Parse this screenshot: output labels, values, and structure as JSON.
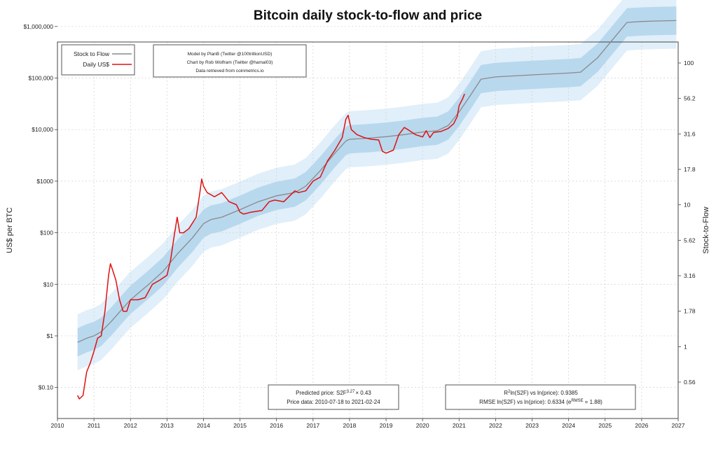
{
  "chart_data": {
    "type": "line",
    "title": "Bitcoin daily stock-to-flow and price",
    "ylabel_left": "US$ per BTC",
    "ylabel_right": "Stock-to-Flow",
    "y_scale": "log",
    "xlim": [
      2010,
      2027
    ],
    "ylim": [
      0.025,
      500000
    ],
    "x_ticks": [
      "2010",
      "2011",
      "2012",
      "2013",
      "2014",
      "2015",
      "2016",
      "2017",
      "2018",
      "2019",
      "2020",
      "2021",
      "2022",
      "2023",
      "2024",
      "2025",
      "2026",
      "2027"
    ],
    "y_ticks_left": [
      {
        "value": 0.1,
        "label": "$0.10"
      },
      {
        "value": 1,
        "label": "$1"
      },
      {
        "value": 10,
        "label": "$10"
      },
      {
        "value": 100,
        "label": "$100"
      },
      {
        "value": 1000,
        "label": "$1000"
      },
      {
        "value": 10000,
        "label": "$10,000"
      },
      {
        "value": 100000,
        "label": "$100,000"
      },
      {
        "value": 1000000,
        "label": "$1,000,000"
      }
    ],
    "y_ticks_right": [
      "0.56",
      "1",
      "1.78",
      "3.16",
      "5.62",
      "10",
      "17.8",
      "31.6",
      "56.2",
      "100"
    ],
    "legend": {
      "position": "top-left",
      "entries": [
        {
          "label": "Stock to Flow",
          "color": "#8a8a8a"
        },
        {
          "label": "Daily US$",
          "color": "#e01010"
        }
      ]
    },
    "credits": [
      "Model by PlanB (Twitter @100trillionUSD)",
      "Chart by Rob Wolfram (Twitter @hamal03)",
      "Data retrieved from coinmetrics.io"
    ],
    "info_left": {
      "line1_prefix": "Predicted price: S2F",
      "line1_exp": "3.27",
      "line1_suffix": "× 0.43",
      "line2": "Price data: 2010-07-18 to 2021-02-24"
    },
    "info_right": {
      "line1_prefix": "R",
      "line1_exp": "2",
      "line1_suffix": "ln(S2F) vs ln(price): 0.9385",
      "line2_prefix": "RMSE ln(S2F) vs ln(price): 0.6334 (e",
      "line2_exp": "RMSE",
      "line2_suffix": "= 1.88)"
    },
    "series": [
      {
        "name": "Stock to Flow",
        "color": "#8a8a8a",
        "x": [
          2010.55,
          2010.8,
          2011.0,
          2011.2,
          2011.5,
          2011.8,
          2012.0,
          2012.5,
          2012.9,
          2013.3,
          2013.7,
          2014.0,
          2014.2,
          2014.5,
          2015.0,
          2015.5,
          2016.0,
          2016.5,
          2016.8,
          2017.2,
          2017.6,
          2017.9,
          2018.0,
          2018.5,
          2019.0,
          2019.5,
          2020.0,
          2020.4,
          2020.7,
          2021.0,
          2021.3,
          2021.6,
          2022.0,
          2023.0,
          2024.0,
          2024.33,
          2024.8,
          2025.2,
          2025.6,
          2026.0,
          2026.5,
          2026.95
        ],
        "y": [
          0.75,
          0.9,
          1.0,
          1.2,
          2.0,
          3.5,
          5.0,
          10,
          18,
          40,
          80,
          150,
          180,
          200,
          280,
          400,
          520,
          600,
          800,
          1600,
          3500,
          6000,
          6500,
          6800,
          7300,
          8000,
          9000,
          9500,
          12000,
          22000,
          45000,
          95000,
          105000,
          115000,
          125000,
          130000,
          250000,
          550000,
          1200000,
          1250000,
          1280000,
          1300000
        ]
      },
      {
        "name": "Daily US$",
        "color": "#e01010",
        "x": [
          2010.55,
          2010.6,
          2010.7,
          2010.8,
          2010.9,
          2011.0,
          2011.1,
          2011.2,
          2011.3,
          2011.4,
          2011.45,
          2011.5,
          2011.6,
          2011.7,
          2011.8,
          2011.9,
          2012.0,
          2012.2,
          2012.4,
          2012.6,
          2012.8,
          2013.0,
          2013.1,
          2013.2,
          2013.28,
          2013.35,
          2013.45,
          2013.6,
          2013.8,
          2013.9,
          2013.95,
          2014.0,
          2014.1,
          2014.3,
          2014.5,
          2014.7,
          2014.9,
          2015.0,
          2015.1,
          2015.3,
          2015.6,
          2015.8,
          2015.95,
          2016.2,
          2016.5,
          2016.6,
          2016.8,
          2017.0,
          2017.2,
          2017.4,
          2017.6,
          2017.8,
          2017.9,
          2017.96,
          2018.05,
          2018.2,
          2018.4,
          2018.6,
          2018.8,
          2018.9,
          2019.0,
          2019.2,
          2019.35,
          2019.5,
          2019.6,
          2019.8,
          2020.0,
          2020.1,
          2020.2,
          2020.3,
          2020.5,
          2020.7,
          2020.85,
          2020.95,
          2021.0,
          2021.05,
          2021.1,
          2021.15
        ],
        "y": [
          0.07,
          0.06,
          0.07,
          0.2,
          0.3,
          0.5,
          0.9,
          1.0,
          3.0,
          15,
          25,
          20,
          12,
          5.0,
          3.0,
          3.0,
          5.0,
          5.0,
          5.5,
          10,
          12,
          15,
          30,
          90,
          200,
          100,
          100,
          120,
          200,
          600,
          1100,
          800,
          600,
          500,
          600,
          400,
          350,
          250,
          230,
          250,
          270,
          400,
          430,
          400,
          650,
          600,
          650,
          1000,
          1200,
          2500,
          4000,
          7000,
          16000,
          19000,
          10000,
          8000,
          7000,
          6500,
          6300,
          3800,
          3500,
          4000,
          8000,
          11000,
          10000,
          8000,
          7200,
          9500,
          7000,
          8800,
          9200,
          10500,
          13000,
          18000,
          29000,
          34000,
          40000,
          49000
        ]
      }
    ],
    "band_inner_color": "#b8d8ee",
    "band_outer_color": "#e0eff9"
  }
}
